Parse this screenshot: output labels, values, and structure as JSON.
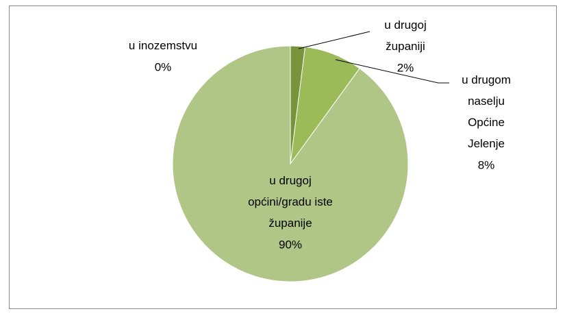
{
  "chart_data": {
    "type": "pie",
    "categories": [
      "u inozemstvu",
      "u drugoj županiji",
      "u drugom naselju Općine Jelenje",
      "u drugoj općini/gradu iste županije"
    ],
    "values": [
      0,
      2,
      8,
      90
    ],
    "value_labels": [
      "0%",
      "2%",
      "8%",
      "90%"
    ],
    "colors": [
      "#4f6228",
      "#77933c",
      "#9bbb59",
      "#afc687"
    ]
  }
}
